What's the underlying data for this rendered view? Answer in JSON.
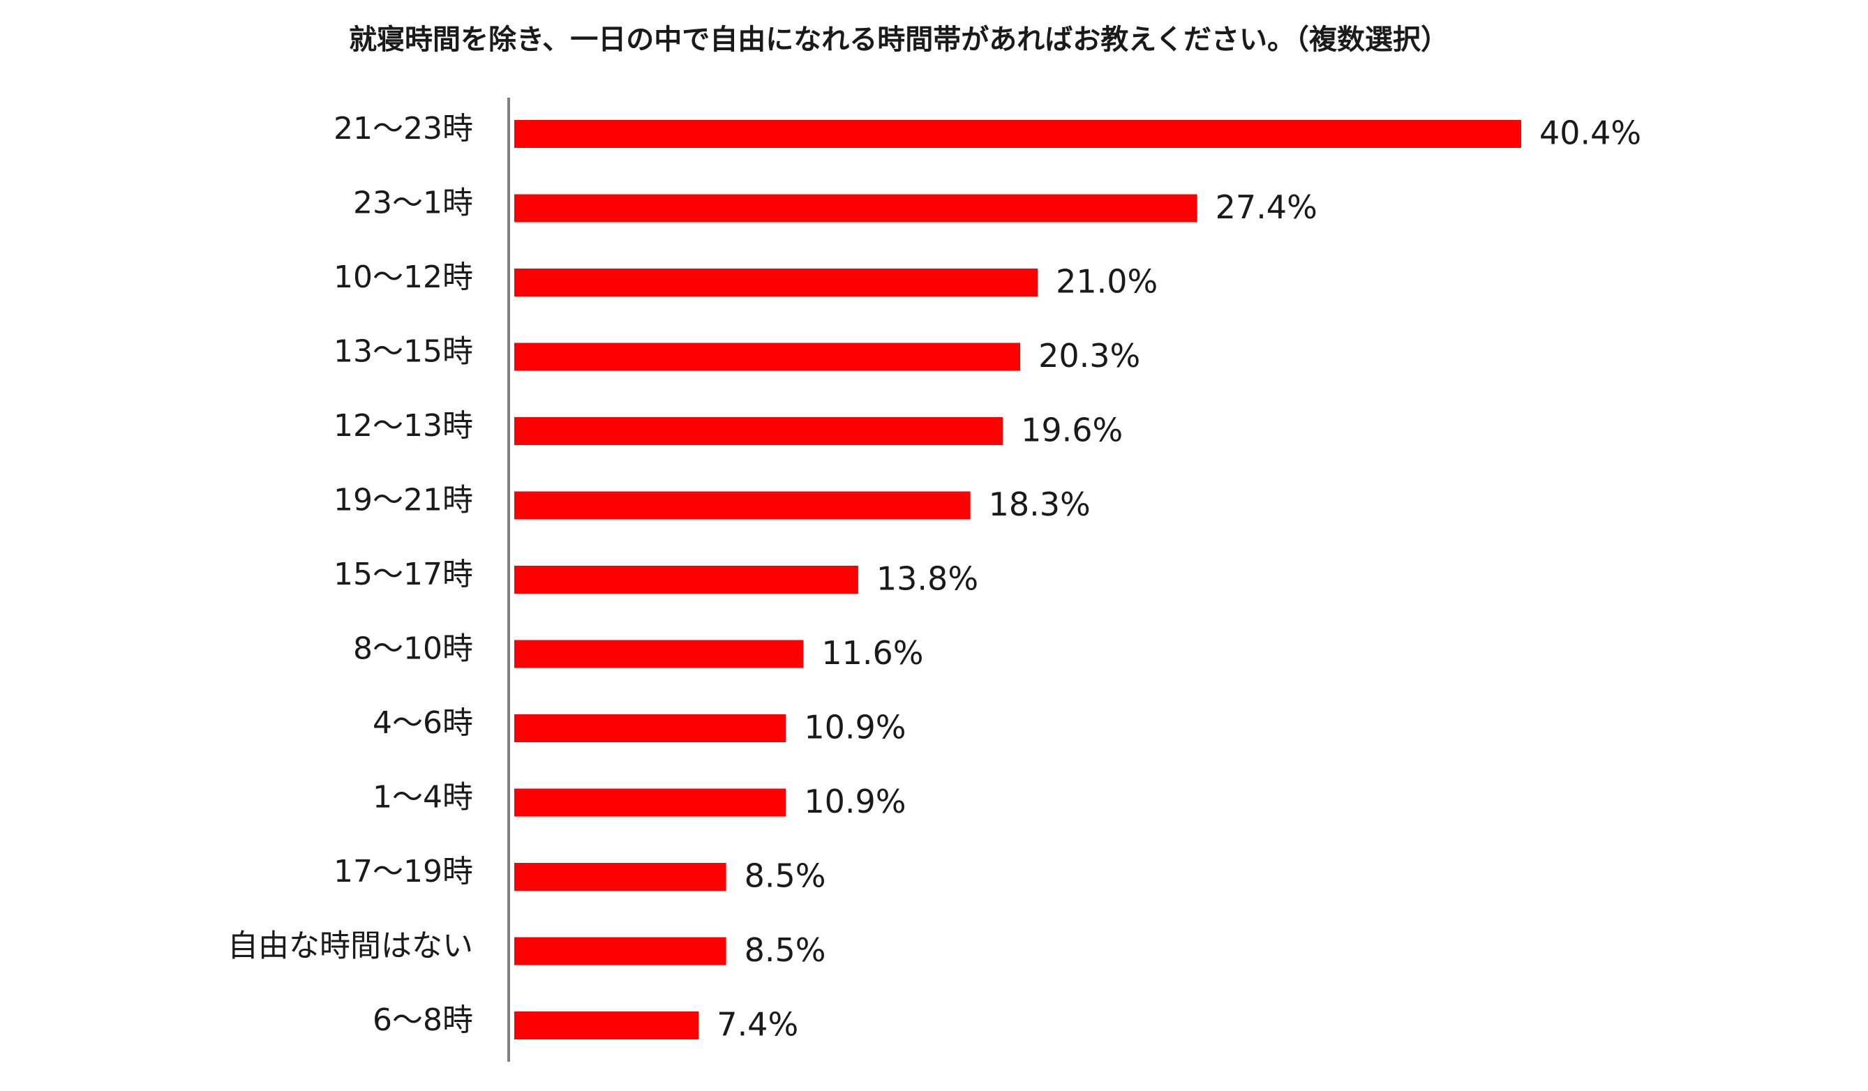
{
  "chart_data": {
    "type": "bar",
    "orientation": "horizontal",
    "title": "就寝時間を除き、一日の中で自由になれる時間帯があればお教えください。（複数選択）",
    "categories": [
      "21～23時",
      "23～1時",
      "10～12時",
      "13～15時",
      "12～13時",
      "19～21時",
      "15～17時",
      "8～10時",
      "4～6時",
      "1～4時",
      "17～19時",
      "自由な時間はない",
      "6～8時"
    ],
    "values": [
      40.4,
      27.4,
      21.0,
      20.3,
      19.6,
      18.3,
      13.8,
      11.6,
      10.9,
      10.9,
      8.5,
      8.5,
      7.4
    ],
    "value_labels": [
      "40.4%",
      "27.4%",
      "21.0%",
      "20.3%",
      "19.6%",
      "18.3%",
      "13.8%",
      "11.6%",
      "10.9%",
      "10.9%",
      "8.5%",
      "8.5%",
      "7.4%"
    ],
    "unit": "%",
    "xlim": [
      0,
      40.4
    ],
    "grid": false,
    "legend": "none",
    "bar_color": "#ff0000",
    "axis_color": "#808080"
  }
}
